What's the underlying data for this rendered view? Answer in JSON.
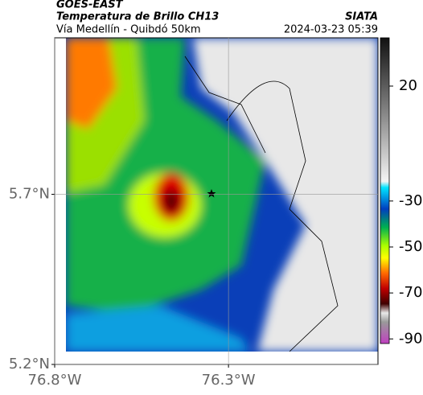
{
  "header": {
    "satellite": "GOES-EAST",
    "title": "Temperatura de Brillo CH13",
    "subtitle": "Vía Medellín - Quibdó 50km",
    "source": "SIATA",
    "datetime": "2024-03-23 05:39"
  },
  "map": {
    "ylim": [
      5.2,
      6.16
    ],
    "xlim": [
      -76.8,
      -75.87
    ],
    "yticks": [
      {
        "value": 5.7,
        "label": "5.7°N"
      },
      {
        "value": 5.2,
        "label": "5.2°N"
      }
    ],
    "xticks": [
      {
        "value": -76.8,
        "label": "76.8°W"
      },
      {
        "value": -76.3,
        "label": "76.3°W"
      }
    ]
  },
  "colorbar": {
    "lim": [
      -92,
      41
    ],
    "ticks": [
      20,
      -30,
      -50,
      -70,
      -90
    ]
  }
}
